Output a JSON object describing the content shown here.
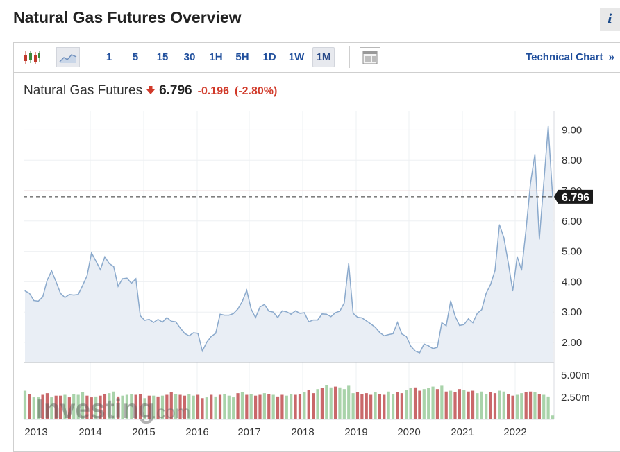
{
  "page": {
    "title": "Natural Gas Futures Overview",
    "info_label": "i"
  },
  "toolbar": {
    "candles_icon": "candlestick-icon",
    "area_icon": "area-chart-icon",
    "intervals": [
      "1",
      "5",
      "15",
      "30",
      "1H",
      "5H",
      "1D",
      "1W",
      "1M"
    ],
    "active_interval": "1M",
    "layout_icon": "chart-layout-icon",
    "technical_link": "Technical Chart",
    "technical_chevron": "»"
  },
  "quote": {
    "name": "Natural Gas Futures",
    "direction_icon": "down-arrow-icon",
    "price": "6.796",
    "change": "-0.196",
    "change_pct": "(-2.80%)"
  },
  "colors": {
    "price_line": "#8aa9cc",
    "area_fill": "#e9eef5",
    "volume_up": "#a9d3aa",
    "volume_down": "#c9686a",
    "reference_line": "#e69b9b",
    "last_price_label_bg": "#1a1a1a",
    "accent_text": "#1f4e9c",
    "negative": "#d13a2a"
  },
  "watermark": {
    "brand": "Investing",
    "suffix": ".com"
  },
  "chart_data": {
    "type": "area",
    "series": [
      {
        "values": [
          3.7,
          3.62,
          3.38,
          3.36,
          3.5,
          4.05,
          4.36,
          4.0,
          3.62,
          3.48,
          3.58,
          3.56,
          3.58,
          3.88,
          4.2,
          4.95,
          4.68,
          4.4,
          4.82,
          4.6,
          4.5,
          3.85,
          4.1,
          4.12,
          3.95,
          4.1,
          2.88,
          2.73,
          2.76,
          2.66,
          2.76,
          2.67,
          2.82,
          2.7,
          2.68,
          2.48,
          2.3,
          2.22,
          2.32,
          2.3,
          1.72,
          2.01,
          2.2,
          2.3,
          2.93,
          2.9,
          2.9,
          2.95,
          3.1,
          3.35,
          3.72,
          3.1,
          2.82,
          3.17,
          3.25,
          3.03,
          3.0,
          2.82,
          3.04,
          3.01,
          2.93,
          3.04,
          2.96,
          2.98,
          2.68,
          2.74,
          2.74,
          2.94,
          2.93,
          2.85,
          2.98,
          3.03,
          3.3,
          4.6,
          2.96,
          2.83,
          2.81,
          2.71,
          2.61,
          2.5,
          2.33,
          2.22,
          2.26,
          2.29,
          2.66,
          2.28,
          2.2,
          1.88,
          1.72,
          1.66,
          1.95,
          1.89,
          1.8,
          1.84,
          2.65,
          2.55,
          3.37,
          2.87,
          2.56,
          2.59,
          2.78,
          2.65,
          2.96,
          3.08,
          3.62,
          3.91,
          4.37,
          5.88,
          5.45,
          4.62,
          3.7,
          4.83,
          4.38,
          5.72,
          7.24,
          8.2,
          5.4,
          7.26,
          9.12,
          6.796
        ]
      }
    ],
    "volume_values": [
      3.4,
      3.0,
      2.6,
      2.6,
      2.9,
      3.1,
      2.6,
      2.8,
      2.8,
      2.9,
      2.6,
      3.0,
      2.9,
      3.2,
      2.8,
      2.6,
      2.7,
      2.8,
      3.0,
      3.1,
      3.3,
      2.7,
      2.8,
      2.9,
      3.0,
      2.9,
      3.0,
      2.5,
      2.8,
      2.8,
      2.7,
      2.8,
      2.9,
      3.2,
      3.0,
      2.9,
      2.8,
      3.0,
      2.8,
      2.9,
      2.5,
      2.6,
      2.9,
      2.7,
      2.9,
      3.0,
      2.8,
      2.6,
      3.1,
      3.2,
      2.9,
      3.0,
      2.8,
      2.9,
      3.1,
      3.0,
      2.9,
      2.7,
      2.9,
      2.8,
      3.0,
      2.9,
      3.0,
      3.2,
      3.5,
      3.1,
      3.6,
      3.7,
      4.1,
      3.8,
      3.9,
      3.8,
      3.6,
      4.0,
      3.1,
      3.2,
      3.0,
      3.1,
      2.9,
      3.2,
      3.0,
      2.9,
      3.3,
      3.0,
      3.2,
      3.1,
      3.5,
      3.7,
      3.8,
      3.4,
      3.6,
      3.7,
      3.9,
      3.6,
      4.0,
      3.3,
      3.4,
      3.2,
      3.6,
      3.5,
      3.3,
      3.4,
      3.1,
      3.3,
      3.0,
      3.2,
      3.1,
      3.4,
      3.3,
      3.0,
      2.8,
      2.9,
      3.1,
      3.2,
      3.3,
      3.2,
      3.0,
      2.9,
      2.7,
      0.4
    ],
    "volume_dir": [
      "u",
      "d",
      "u",
      "u",
      "d",
      "d",
      "u",
      "d",
      "d",
      "u",
      "d",
      "u",
      "u",
      "u",
      "d",
      "d",
      "u",
      "d",
      "d",
      "u",
      "u",
      "d",
      "u",
      "u",
      "u",
      "d",
      "d",
      "u",
      "d",
      "u",
      "d",
      "u",
      "d",
      "d",
      "u",
      "d",
      "d",
      "u",
      "u",
      "d",
      "d",
      "u",
      "d",
      "u",
      "d",
      "u",
      "u",
      "u",
      "d",
      "u",
      "d",
      "u",
      "d",
      "d",
      "u",
      "d",
      "u",
      "d",
      "d",
      "u",
      "u",
      "d",
      "d",
      "u",
      "d",
      "d",
      "u",
      "d",
      "u",
      "u",
      "d",
      "u",
      "u",
      "u",
      "u",
      "d",
      "d",
      "d",
      "d",
      "u",
      "d",
      "d",
      "u",
      "u",
      "d",
      "d",
      "u",
      "u",
      "d",
      "d",
      "u",
      "u",
      "u",
      "d",
      "u",
      "d",
      "u",
      "d",
      "d",
      "u",
      "d",
      "d",
      "u",
      "u",
      "u",
      "d",
      "d",
      "u",
      "u",
      "d",
      "d",
      "u",
      "u",
      "d",
      "d",
      "u",
      "d",
      "u",
      "u",
      "u"
    ],
    "x_labels": [
      "2013",
      "2014",
      "2015",
      "2016",
      "2017",
      "2018",
      "2019",
      "2020",
      "2021",
      "2022"
    ],
    "y_ticks": [
      "2.00",
      "3.00",
      "4.00",
      "5.00",
      "6.00",
      "7.00",
      "8.00",
      "9.00"
    ],
    "volume_ticks": [
      "2.50m",
      "5.00m"
    ],
    "reference_value": 6.992,
    "last_value_label": "6.796",
    "ylim": [
      1.4,
      9.7
    ],
    "volume_max": 5.8,
    "grid": true,
    "legend": "none"
  }
}
